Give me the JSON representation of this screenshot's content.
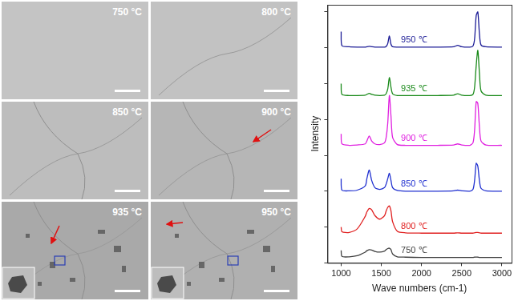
{
  "micrographs": {
    "panels": [
      {
        "label": "750 °C"
      },
      {
        "label": "800 °C"
      },
      {
        "label": "850 °C"
      },
      {
        "label": "900 °C"
      },
      {
        "label": "935 °C"
      },
      {
        "label": "950 °C"
      }
    ]
  },
  "chart_data": {
    "type": "line",
    "x_label": "Wave numbers (cm-1)",
    "y_label": "Intensity",
    "xlim": [
      830,
      3120
    ],
    "xticks": [
      1000,
      1500,
      2000,
      2500,
      3000
    ],
    "ylim": [
      0,
      7.2
    ],
    "yticks": [
      0,
      1,
      2,
      3,
      4,
      5,
      6,
      7
    ],
    "tick_labels": "x",
    "grid": false,
    "x": [
      1000,
      1010,
      1100,
      1200,
      1300,
      1320,
      1350,
      1380,
      1420,
      1480,
      1540,
      1560,
      1580,
      1600,
      1620,
      1640,
      1700,
      1800,
      2000,
      2200,
      2400,
      2450,
      2500,
      2600,
      2640,
      2660,
      2680,
      2700,
      2720,
      2740,
      2800,
      3000
    ],
    "series": [
      {
        "name": "950 ℃",
        "color": "#1c1c96",
        "values": [
          6.45,
          6.06,
          6.03,
          6.02,
          6.02,
          6.03,
          6.04,
          6.03,
          6.02,
          6.02,
          6.02,
          6.04,
          6.12,
          6.33,
          6.1,
          6.03,
          6.02,
          6.02,
          6.02,
          6.02,
          6.03,
          6.07,
          6.03,
          6.02,
          6.05,
          6.25,
          6.9,
          7.0,
          6.4,
          6.08,
          6.03,
          6.02
        ]
      },
      {
        "name": "935 ℃",
        "color": "#1a8a1a",
        "values": [
          5.0,
          4.7,
          4.67,
          4.67,
          4.68,
          4.7,
          4.73,
          4.7,
          4.68,
          4.67,
          4.68,
          4.72,
          4.85,
          5.17,
          4.9,
          4.72,
          4.67,
          4.67,
          4.67,
          4.67,
          4.68,
          4.72,
          4.68,
          4.67,
          4.7,
          4.9,
          5.5,
          5.93,
          5.3,
          4.8,
          4.68,
          4.67
        ]
      },
      {
        "name": "900 ℃",
        "color": "#e020e0",
        "values": [
          3.6,
          3.32,
          3.28,
          3.29,
          3.32,
          3.4,
          3.54,
          3.4,
          3.32,
          3.3,
          3.35,
          3.5,
          3.9,
          4.67,
          4.1,
          3.5,
          3.3,
          3.28,
          3.28,
          3.28,
          3.29,
          3.32,
          3.29,
          3.28,
          3.35,
          3.7,
          4.5,
          4.45,
          3.8,
          3.4,
          3.29,
          3.28
        ]
      },
      {
        "name": "850 ℃",
        "color": "#2030d0",
        "values": [
          2.35,
          2.03,
          2.01,
          2.03,
          2.15,
          2.35,
          2.59,
          2.3,
          2.1,
          2.05,
          2.1,
          2.2,
          2.35,
          2.5,
          2.3,
          2.1,
          2.02,
          2.0,
          2.0,
          2.0,
          2.01,
          2.03,
          2.01,
          2.0,
          2.05,
          2.3,
          2.78,
          2.7,
          2.3,
          2.08,
          2.01,
          2.0
        ]
      },
      {
        "name": "800 ℃",
        "color": "#e02020",
        "values": [
          1.0,
          0.87,
          0.85,
          0.95,
          1.3,
          1.42,
          1.52,
          1.48,
          1.32,
          1.22,
          1.32,
          1.45,
          1.55,
          1.59,
          1.45,
          1.15,
          0.88,
          0.84,
          0.83,
          0.83,
          0.83,
          0.84,
          0.83,
          0.83,
          0.83,
          0.84,
          0.85,
          0.85,
          0.84,
          0.83,
          0.83,
          0.83
        ]
      },
      {
        "name": "750 ℃",
        "color": "#404040",
        "values": [
          0.35,
          0.18,
          0.17,
          0.2,
          0.3,
          0.34,
          0.37,
          0.36,
          0.32,
          0.3,
          0.33,
          0.37,
          0.4,
          0.41,
          0.37,
          0.25,
          0.17,
          0.16,
          0.15,
          0.15,
          0.15,
          0.15,
          0.15,
          0.15,
          0.15,
          0.16,
          0.16,
          0.16,
          0.15,
          0.15,
          0.15,
          0.15
        ]
      }
    ]
  }
}
